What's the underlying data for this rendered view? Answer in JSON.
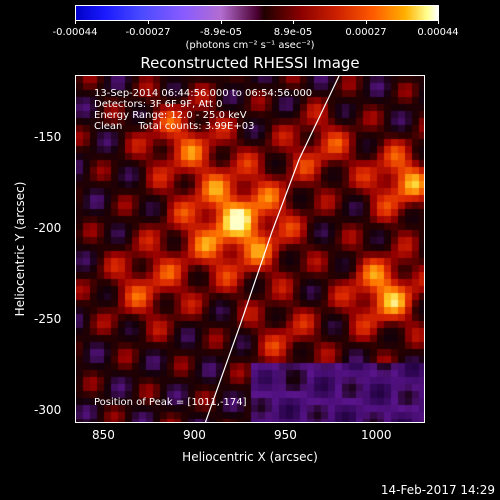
{
  "colorbar": {
    "tick_labels": [
      "-0.00044",
      "-0.00027",
      "-8.9e-05",
      "8.9e-05",
      "0.00027",
      "0.00044"
    ],
    "units_label": "(photons cm⁻² s⁻¹ asec⁻²)"
  },
  "plot": {
    "title": "Reconstructed RHESSI Image",
    "xlabel": "Heliocentric X (arcsec)",
    "ylabel": "Heliocentric Y (arcsec)",
    "x_ticks": [
      "850",
      "900",
      "950",
      "1000"
    ],
    "y_ticks": [
      "-150",
      "-200",
      "-250",
      "-300"
    ],
    "xlim": [
      833,
      1026
    ],
    "ylim": [
      -306,
      -114
    ]
  },
  "annotations": {
    "time_range": "13-Sep-2014 06:44:56.000 to 06:54:56.000",
    "detectors": "Detectors: 3F 6F 9F, Att 0",
    "energy_range": "Energy Range: 12.0 - 25.0 keV",
    "method_counts": "Clean     Total counts: 3.99E+03",
    "peak_position": "Position of Peak = [1011,-174]"
  },
  "limb": {
    "x": [
      904,
      924,
      941,
      956,
      968,
      978
    ],
    "y": [
      -306,
      -250,
      -200,
      -160,
      -135,
      -114
    ]
  },
  "datestamp": "14-Feb-2017 14:29"
}
